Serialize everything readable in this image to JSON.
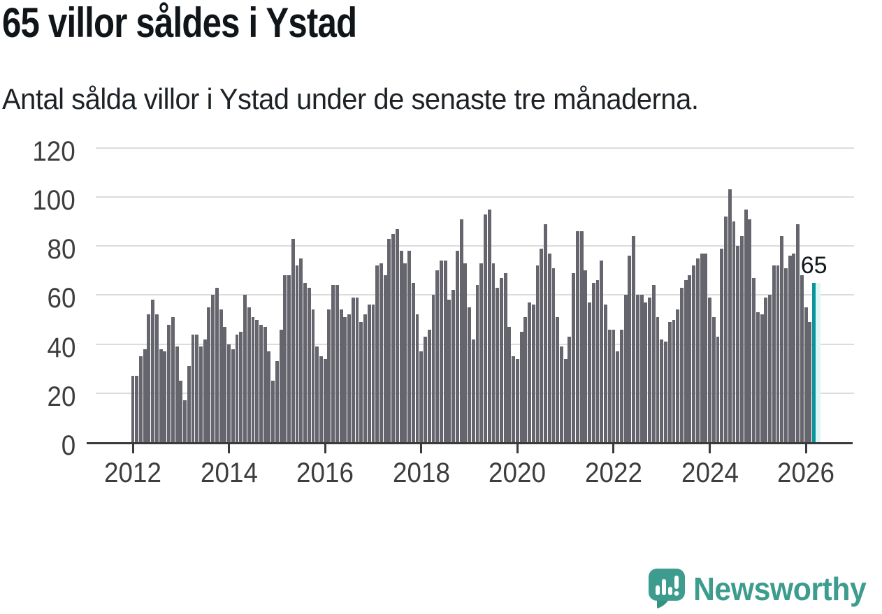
{
  "header": {
    "title": "65 villor såldes i Ystad",
    "subtitle": "Antal sålda villor i Ystad under de senaste tre månaderna."
  },
  "chart_data": {
    "type": "bar",
    "title": "65 villor såldes i Ystad",
    "subtitle": "Antal sålda villor i Ystad under de senaste tre månaderna.",
    "xlabel": "",
    "ylabel": "",
    "ylim": [
      0,
      120
    ],
    "y_ticks": [
      0,
      20,
      40,
      60,
      80,
      100,
      120
    ],
    "x_tick_years": [
      2012,
      2014,
      2016,
      2018,
      2020,
      2022,
      2024,
      2026
    ],
    "grid": true,
    "legend_position": "none",
    "x_start_month": "2012-01",
    "x_frequency": "monthly",
    "values": [
      27,
      27,
      35,
      38,
      52,
      58,
      52,
      38,
      37,
      48,
      51,
      39,
      25,
      17,
      31,
      44,
      44,
      39,
      42,
      55,
      60,
      63,
      54,
      47,
      40,
      38,
      44,
      45,
      60,
      55,
      51,
      50,
      48,
      47,
      37,
      25,
      33,
      46,
      68,
      68,
      83,
      72,
      75,
      65,
      63,
      54,
      39,
      35,
      34,
      54,
      64,
      64,
      54,
      51,
      52,
      59,
      59,
      49,
      52,
      56,
      56,
      72,
      73,
      68,
      83,
      85,
      87,
      78,
      73,
      78,
      65,
      52,
      37,
      43,
      46,
      60,
      70,
      74,
      74,
      58,
      62,
      78,
      91,
      73,
      55,
      42,
      64,
      73,
      93,
      95,
      73,
      63,
      67,
      69,
      47,
      35,
      34,
      45,
      51,
      57,
      56,
      72,
      79,
      89,
      77,
      71,
      51,
      39,
      34,
      43,
      69,
      86,
      86,
      70,
      57,
      65,
      66,
      74,
      56,
      46,
      46,
      37,
      46,
      60,
      76,
      84,
      60,
      60,
      57,
      59,
      64,
      51,
      42,
      41,
      49,
      50,
      54,
      63,
      66,
      68,
      72,
      75,
      77,
      77,
      59,
      51,
      43,
      79,
      92,
      103,
      90,
      80,
      84,
      95,
      91,
      67,
      53,
      52,
      59,
      60,
      72,
      72,
      84,
      71,
      76,
      77,
      89,
      68,
      55,
      49,
      65
    ],
    "highlight": {
      "index": 170,
      "value": 65,
      "label": "65"
    },
    "colors": {
      "bar": "#65656d",
      "highlight_bar": "#0a959d",
      "highlight_glow": "#dff6f5",
      "grid": "#dcdcdc",
      "axis": "#3a3a3a",
      "tick_text": "#3d3d3d"
    }
  },
  "footer": {
    "brand": "Newsworthy",
    "logo_icon": "newsworthy-speech-bubble-chart-icon",
    "brand_color": "#3d9c8e"
  }
}
